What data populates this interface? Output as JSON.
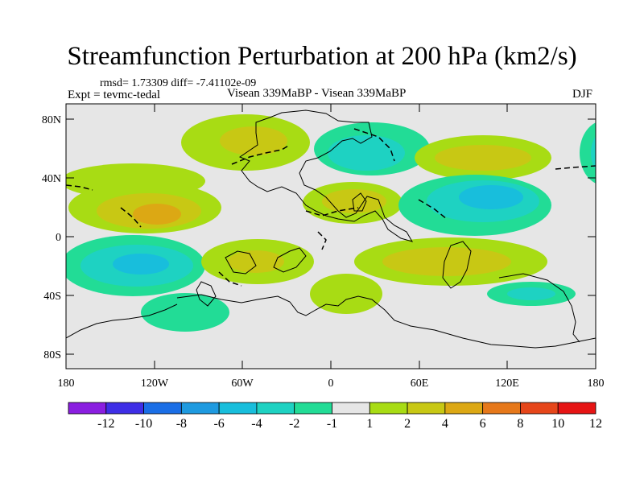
{
  "header": {
    "title": "Streamfunction Perturbation at 200 hPa (km2/s)",
    "stats": "rmsd= 1.73309 diff= -7.41102e-09",
    "experiment": "Expt = tevmc-tedal",
    "center_label": "Visean 339MaBP - Visean 339MaBP",
    "season": "DJF"
  },
  "axes": {
    "lat_labels": [
      "80N",
      "40N",
      "0",
      "40S",
      "80S"
    ],
    "lon_labels": [
      "180",
      "120W",
      "60W",
      "0",
      "60E",
      "120E",
      "180"
    ]
  },
  "colorbar": {
    "labels": [
      "-12",
      "-10",
      "-8",
      "-6",
      "-4",
      "-2",
      "-1",
      "1",
      "2",
      "4",
      "6",
      "8",
      "10",
      "12"
    ],
    "colors": [
      "#8a1ee0",
      "#3e2ee6",
      "#1a6ee6",
      "#1e9ae0",
      "#18bedc",
      "#1ed2c2",
      "#22dc96",
      "#e6e6e6",
      "#a8dc14",
      "#c8c814",
      "#dca814",
      "#e6781a",
      "#e6461a",
      "#e61414"
    ]
  },
  "palette": {
    "background": "#e6e6e6",
    "light_blue": "#1ed2c2",
    "mid_blue": "#18bedc",
    "green": "#a8dc14",
    "yellow": "#c8c814",
    "orange": "#dca814",
    "dark_orange": "#e6781a"
  }
}
